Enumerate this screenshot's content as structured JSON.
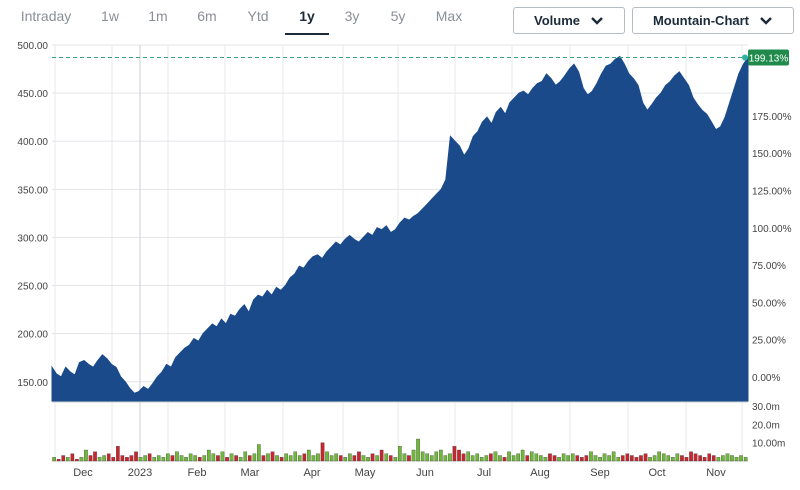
{
  "range_tabs": [
    {
      "label": "Intraday",
      "active": false
    },
    {
      "label": "1w",
      "active": false
    },
    {
      "label": "1m",
      "active": false
    },
    {
      "label": "6m",
      "active": false
    },
    {
      "label": "Ytd",
      "active": false
    },
    {
      "label": "1y",
      "active": true
    },
    {
      "label": "3y",
      "active": false
    },
    {
      "label": "5y",
      "active": false
    },
    {
      "label": "Max",
      "active": false
    }
  ],
  "controls": {
    "volume_label": "Volume",
    "chart_type_label": "Mountain-Chart",
    "chevron_icon": "chevron-down-icon"
  },
  "colors": {
    "area": "#1a4a8a",
    "volume_up": "#6fb83a",
    "volume_down": "#c8262e",
    "last_price_line": "#3aa37a",
    "badge": "#1f8a4c"
  },
  "chart_data": {
    "type": "area",
    "price_ticks": [
      "500.00",
      "450.00",
      "400.00",
      "350.00",
      "300.00",
      "250.00",
      "200.00",
      "150.00"
    ],
    "percent_ticks": [
      "0.00%",
      "25.00%",
      "50.00%",
      "75.00%",
      "100.00%",
      "125.00%",
      "150.00%",
      "175.00%"
    ],
    "percent_badge": "199.13%",
    "volume_ticks": [
      "30.0m",
      "20.0m",
      "10.00m"
    ],
    "x_labels": [
      "Dec",
      "2023",
      "Feb",
      "Mar",
      "Apr",
      "May",
      "Jun",
      "Jul",
      "Aug",
      "Sep",
      "Oct",
      "Nov"
    ],
    "ylim": [
      130,
      500
    ],
    "last_price": 487,
    "price_series": [
      165,
      158,
      155,
      165,
      160,
      157,
      170,
      172,
      168,
      165,
      172,
      178,
      174,
      168,
      165,
      155,
      150,
      143,
      138,
      140,
      145,
      142,
      148,
      155,
      160,
      168,
      165,
      175,
      180,
      185,
      188,
      195,
      192,
      200,
      205,
      210,
      207,
      215,
      210,
      220,
      218,
      225,
      230,
      222,
      235,
      240,
      238,
      245,
      240,
      248,
      245,
      250,
      258,
      262,
      270,
      268,
      275,
      280,
      282,
      278,
      285,
      290,
      295,
      292,
      298,
      302,
      298,
      295,
      300,
      305,
      302,
      310,
      308,
      312,
      305,
      308,
      315,
      320,
      318,
      322,
      325,
      330,
      335,
      340,
      345,
      350,
      360,
      405,
      400,
      395,
      385,
      392,
      405,
      410,
      420,
      425,
      418,
      430,
      435,
      428,
      440,
      445,
      450,
      452,
      448,
      455,
      460,
      462,
      470,
      465,
      458,
      462,
      468,
      475,
      480,
      472,
      455,
      448,
      452,
      460,
      470,
      478,
      480,
      485,
      488,
      480,
      470,
      465,
      458,
      440,
      432,
      438,
      445,
      450,
      458,
      462,
      468,
      472,
      465,
      458,
      445,
      438,
      432,
      428,
      420,
      412,
      415,
      425,
      440,
      455,
      470,
      480,
      487
    ],
    "volume_series": [
      2,
      1,
      3,
      2,
      4,
      1,
      2,
      6,
      3,
      5,
      2,
      3,
      4,
      2,
      8,
      3,
      2,
      3,
      5,
      2,
      3,
      4,
      2,
      3,
      2,
      4,
      3,
      5,
      3,
      2,
      4,
      3,
      2,
      3,
      6,
      4,
      3,
      5,
      2,
      4,
      3,
      2,
      5,
      3,
      4,
      9,
      3,
      4,
      5,
      3,
      2,
      4,
      3,
      5,
      3,
      4,
      6,
      3,
      4,
      10,
      5,
      3,
      4,
      3,
      2,
      4,
      3,
      5,
      3,
      2,
      4,
      3,
      6,
      4,
      3,
      2,
      8,
      4,
      3,
      6,
      12,
      5,
      4,
      3,
      5,
      6,
      3,
      4,
      8,
      6,
      4,
      5,
      3,
      4,
      2,
      3,
      4,
      5,
      3,
      2,
      5,
      3,
      4,
      6,
      3,
      5,
      4,
      3,
      2,
      4,
      3,
      2,
      4,
      3,
      4,
      3,
      2,
      3,
      5,
      3,
      2,
      4,
      3,
      5,
      2,
      3,
      4,
      3,
      2,
      3,
      4,
      2,
      3,
      5,
      4,
      3,
      2,
      4,
      3,
      2,
      5,
      4,
      3,
      2,
      4,
      3,
      2,
      3,
      4,
      3,
      2,
      3,
      2
    ]
  }
}
